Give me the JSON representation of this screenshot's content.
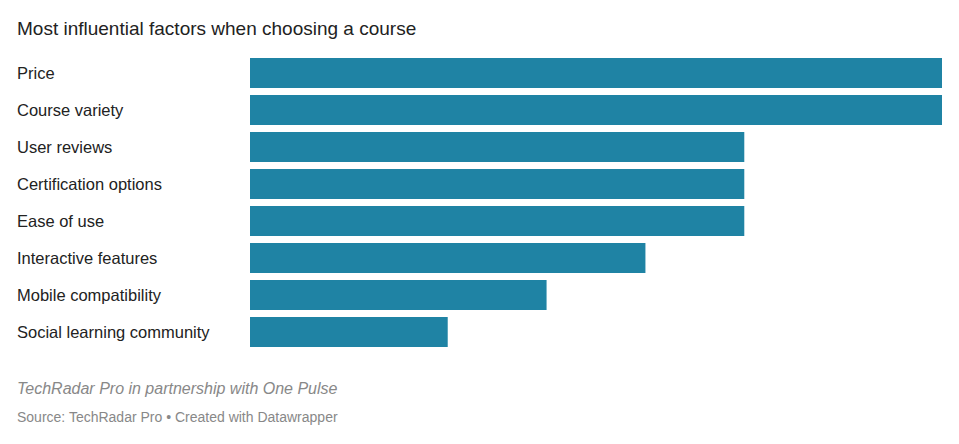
{
  "chart_data": {
    "type": "bar",
    "orientation": "horizontal",
    "title": "Most influential factors when choosing a course",
    "categories": [
      "Price",
      "Course variety",
      "User reviews",
      "Certification options",
      "Ease of use",
      "Interactive features",
      "Mobile compatibility",
      "Social learning community"
    ],
    "values": [
      7,
      7,
      5,
      5,
      5,
      4,
      3,
      2
    ],
    "color": "#1f83a4",
    "xlim": [
      0,
      7
    ],
    "grid": false,
    "tick_labels": false,
    "notes": "TechRadar Pro in partnership with One Pulse",
    "source": "Source: TechRadar Pro • Created with Datawrapper"
  }
}
